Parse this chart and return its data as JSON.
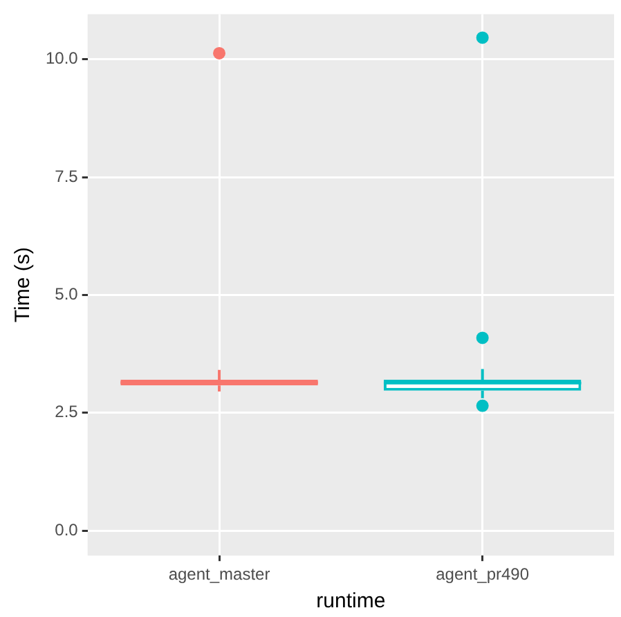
{
  "chart_data": {
    "type": "box",
    "xlabel": "runtime",
    "ylabel": "Time (s)",
    "categories": [
      "agent_master",
      "agent_pr490"
    ],
    "colors": [
      "#f8766d",
      "#00bfc4"
    ],
    "boxes": [
      {
        "low": 2.95,
        "q1": 3.08,
        "median": 3.14,
        "q3": 3.2,
        "high": 3.41,
        "outliers": [
          10.13
        ]
      },
      {
        "low": 2.81,
        "q1": 2.97,
        "median": 3.13,
        "q3": 3.2,
        "high": 3.43,
        "outliers": [
          2.65,
          4.09,
          10.46
        ]
      }
    ],
    "ylim": [
      -0.53,
      10.96
    ],
    "yticks": [
      {
        "value": 0,
        "label": "0.0"
      },
      {
        "value": 2.5,
        "label": "2.5"
      },
      {
        "value": 5,
        "label": "5.0"
      },
      {
        "value": 7.5,
        "label": "7.5"
      },
      {
        "value": 10,
        "label": "10.0"
      }
    ],
    "grid": true,
    "legend": false
  }
}
